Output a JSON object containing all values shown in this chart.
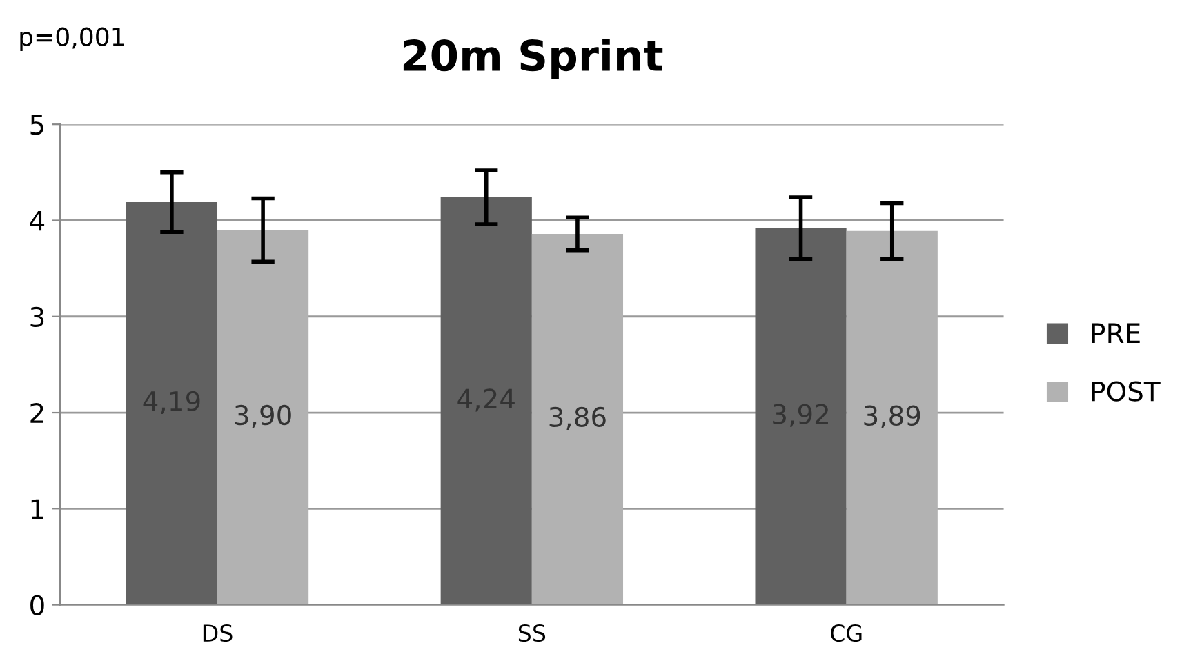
{
  "chart_data": {
    "type": "bar",
    "title": "20m Sprint",
    "annotations": [
      "p=0,001"
    ],
    "categories": [
      "DS",
      "SS",
      "CG"
    ],
    "series": [
      {
        "name": "PRE",
        "color": "#616161",
        "values": [
          4.19,
          4.24,
          3.92
        ],
        "value_labels": [
          "4,19",
          "4,24",
          "3,92"
        ],
        "errors": [
          0.31,
          0.28,
          0.32
        ]
      },
      {
        "name": "POST",
        "color": "#b2b2b2",
        "values": [
          3.9,
          3.86,
          3.89
        ],
        "value_labels": [
          "3,90",
          "3,86",
          "3,89"
        ],
        "errors": [
          0.33,
          0.17,
          0.29
        ]
      }
    ],
    "ylim": [
      0,
      5
    ],
    "yticks": [
      0,
      1,
      2,
      3,
      4,
      5
    ],
    "grid": "y",
    "legend": "right"
  }
}
